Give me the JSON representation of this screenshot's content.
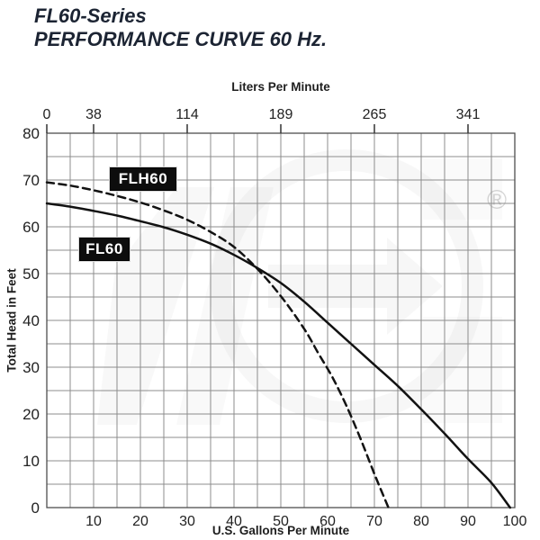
{
  "title": {
    "line1": "FL60-Series",
    "line2": "PERFORMANCE CURVE 60 Hz."
  },
  "colors": {
    "title_text": "#1c2433",
    "grid": "#8c8c8c",
    "grid_border": "#4f4f4f",
    "curve": "#121212",
    "tick_text": "#222222",
    "label_box_bg": "#0d0d0d",
    "label_box_text": "#ffffff"
  },
  "watermark": {
    "registered_symbol": "®"
  },
  "chart_data": {
    "type": "line",
    "title": "FL60-Series PERFORMANCE CURVE 60 Hz.",
    "grid": true,
    "legend_position": "boxed labels on plot",
    "x_axis_bottom": {
      "label": "U.S. Gallons Per Minute",
      "min": 0,
      "max": 100,
      "grid_step": 5,
      "ticks": [
        10,
        20,
        30,
        40,
        50,
        60,
        70,
        80,
        90,
        100
      ]
    },
    "x_axis_top": {
      "label": "Liters Per Minute",
      "ticks": [
        {
          "label": "0",
          "gpm": 0
        },
        {
          "label": "38",
          "gpm": 10
        },
        {
          "label": "114",
          "gpm": 30
        },
        {
          "label": "189",
          "gpm": 50
        },
        {
          "label": "265",
          "gpm": 70
        },
        {
          "label": "341",
          "gpm": 90
        }
      ]
    },
    "y_axis": {
      "label": "Total Head in Feet",
      "min": 0,
      "max": 80,
      "grid_step": 5,
      "ticks": [
        0,
        10,
        20,
        30,
        40,
        50,
        60,
        70,
        80
      ]
    },
    "series": [
      {
        "name": "FLH60",
        "style": "dashed",
        "points": [
          [
            0,
            69.5
          ],
          [
            5,
            68.8
          ],
          [
            10,
            67.8
          ],
          [
            15,
            66.6
          ],
          [
            20,
            65.2
          ],
          [
            25,
            63.5
          ],
          [
            30,
            61.5
          ],
          [
            35,
            58.9
          ],
          [
            40,
            55.7
          ],
          [
            45,
            51.0
          ],
          [
            50,
            45.2
          ],
          [
            55,
            38.2
          ],
          [
            58,
            33.0
          ],
          [
            61,
            27.9
          ],
          [
            64,
            21.8
          ],
          [
            67,
            14.8
          ],
          [
            70,
            7.2
          ],
          [
            73,
            0
          ]
        ]
      },
      {
        "name": "FL60",
        "style": "solid",
        "points": [
          [
            0,
            65
          ],
          [
            5,
            64.3
          ],
          [
            10,
            63.4
          ],
          [
            15,
            62.4
          ],
          [
            20,
            61.2
          ],
          [
            25,
            59.9
          ],
          [
            30,
            58.3
          ],
          [
            35,
            56.4
          ],
          [
            40,
            54
          ],
          [
            45,
            51.2
          ],
          [
            50,
            48
          ],
          [
            55,
            44
          ],
          [
            60,
            39.5
          ],
          [
            65,
            35
          ],
          [
            70,
            30.5
          ],
          [
            75,
            26
          ],
          [
            80,
            21
          ],
          [
            85,
            15.8
          ],
          [
            90,
            10.4
          ],
          [
            95,
            5.3
          ],
          [
            99,
            0
          ]
        ]
      }
    ]
  }
}
